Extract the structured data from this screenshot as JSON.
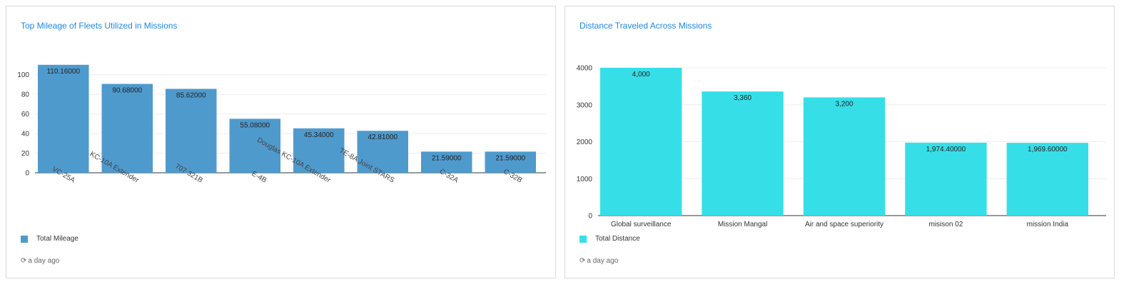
{
  "panels": [
    {
      "title": "Top Mileage of Fleets Utilized in Missions",
      "legend_label": "Total Mileage",
      "updated": "a day ago"
    },
    {
      "title": "Distance Traveled Across Missions",
      "legend_label": "Total Distance",
      "updated": "a day ago"
    }
  ],
  "icons": {
    "refresh": "refresh-icon"
  },
  "chart_data": [
    {
      "type": "bar",
      "title": "Top Mileage of Fleets Utilized in Missions",
      "categories": [
        "VC-25A",
        "KC-10A Extender",
        "707 321B",
        "E-4B",
        "Douglas KC-10A Extender",
        "TE-8A Joint STARS",
        "C-32A",
        "C-32B"
      ],
      "series": [
        {
          "name": "Total Mileage",
          "values": [
            110.16,
            90.68,
            85.62,
            55.08,
            45.34,
            42.81,
            21.59,
            21.59
          ],
          "labels": [
            "110.16000",
            "90.68000",
            "85.62000",
            "55.08000",
            "45.34000",
            "42.81000",
            "21.59000",
            "21.59000"
          ],
          "color": "#4f9acd"
        }
      ],
      "ylim": [
        0,
        110
      ],
      "yticks": [
        0,
        20,
        40,
        60,
        80,
        100
      ],
      "ytick_labels": [
        "0",
        "20",
        "40",
        "60",
        "80",
        "100"
      ],
      "grid": true,
      "xlabel_rotation": "rotated",
      "legend_position": "bottom-left"
    },
    {
      "type": "bar",
      "title": "Distance Traveled Across Missions",
      "categories": [
        "Global surveillance",
        "Mission Mangal",
        "Air and space superiority",
        "misison 02",
        "mission India"
      ],
      "series": [
        {
          "name": "Total Distance",
          "values": [
            4000,
            3360,
            3200,
            1974.4,
            1969.6
          ],
          "labels": [
            "4,000",
            "3,360",
            "3,200",
            "1,974.40000",
            "1,969.60000"
          ],
          "color": "#36dfe8"
        }
      ],
      "ylim": [
        0,
        4000
      ],
      "yticks": [
        0,
        1000,
        2000,
        3000,
        4000
      ],
      "ytick_labels": [
        "0",
        "1000",
        "2000",
        "3000",
        "4000"
      ],
      "grid": true,
      "xlabel_rotation": "none",
      "legend_position": "bottom-left"
    }
  ]
}
